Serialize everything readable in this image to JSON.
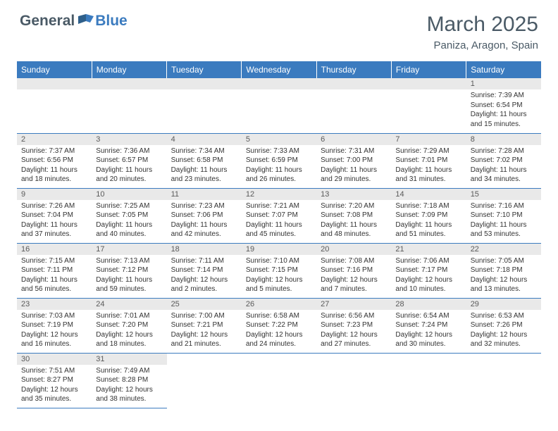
{
  "logo": {
    "text_dark": "General",
    "text_blue": "Blue"
  },
  "title": "March 2025",
  "location": "Paniza, Aragon, Spain",
  "colors": {
    "header_bg": "#3b7bbf",
    "header_text": "#ffffff",
    "daynum_bg": "#e9e9e9",
    "body_text": "#333333",
    "title_text": "#4a5a66"
  },
  "weekdays": [
    "Sunday",
    "Monday",
    "Tuesday",
    "Wednesday",
    "Thursday",
    "Friday",
    "Saturday"
  ],
  "weeks": [
    [
      null,
      null,
      null,
      null,
      null,
      null,
      {
        "n": "1",
        "sr": "7:39 AM",
        "ss": "6:54 PM",
        "dl": "11 hours and 15 minutes."
      }
    ],
    [
      {
        "n": "2",
        "sr": "7:37 AM",
        "ss": "6:56 PM",
        "dl": "11 hours and 18 minutes."
      },
      {
        "n": "3",
        "sr": "7:36 AM",
        "ss": "6:57 PM",
        "dl": "11 hours and 20 minutes."
      },
      {
        "n": "4",
        "sr": "7:34 AM",
        "ss": "6:58 PM",
        "dl": "11 hours and 23 minutes."
      },
      {
        "n": "5",
        "sr": "7:33 AM",
        "ss": "6:59 PM",
        "dl": "11 hours and 26 minutes."
      },
      {
        "n": "6",
        "sr": "7:31 AM",
        "ss": "7:00 PM",
        "dl": "11 hours and 29 minutes."
      },
      {
        "n": "7",
        "sr": "7:29 AM",
        "ss": "7:01 PM",
        "dl": "11 hours and 31 minutes."
      },
      {
        "n": "8",
        "sr": "7:28 AM",
        "ss": "7:02 PM",
        "dl": "11 hours and 34 minutes."
      }
    ],
    [
      {
        "n": "9",
        "sr": "7:26 AM",
        "ss": "7:04 PM",
        "dl": "11 hours and 37 minutes."
      },
      {
        "n": "10",
        "sr": "7:25 AM",
        "ss": "7:05 PM",
        "dl": "11 hours and 40 minutes."
      },
      {
        "n": "11",
        "sr": "7:23 AM",
        "ss": "7:06 PM",
        "dl": "11 hours and 42 minutes."
      },
      {
        "n": "12",
        "sr": "7:21 AM",
        "ss": "7:07 PM",
        "dl": "11 hours and 45 minutes."
      },
      {
        "n": "13",
        "sr": "7:20 AM",
        "ss": "7:08 PM",
        "dl": "11 hours and 48 minutes."
      },
      {
        "n": "14",
        "sr": "7:18 AM",
        "ss": "7:09 PM",
        "dl": "11 hours and 51 minutes."
      },
      {
        "n": "15",
        "sr": "7:16 AM",
        "ss": "7:10 PM",
        "dl": "11 hours and 53 minutes."
      }
    ],
    [
      {
        "n": "16",
        "sr": "7:15 AM",
        "ss": "7:11 PM",
        "dl": "11 hours and 56 minutes."
      },
      {
        "n": "17",
        "sr": "7:13 AM",
        "ss": "7:12 PM",
        "dl": "11 hours and 59 minutes."
      },
      {
        "n": "18",
        "sr": "7:11 AM",
        "ss": "7:14 PM",
        "dl": "12 hours and 2 minutes."
      },
      {
        "n": "19",
        "sr": "7:10 AM",
        "ss": "7:15 PM",
        "dl": "12 hours and 5 minutes."
      },
      {
        "n": "20",
        "sr": "7:08 AM",
        "ss": "7:16 PM",
        "dl": "12 hours and 7 minutes."
      },
      {
        "n": "21",
        "sr": "7:06 AM",
        "ss": "7:17 PM",
        "dl": "12 hours and 10 minutes."
      },
      {
        "n": "22",
        "sr": "7:05 AM",
        "ss": "7:18 PM",
        "dl": "12 hours and 13 minutes."
      }
    ],
    [
      {
        "n": "23",
        "sr": "7:03 AM",
        "ss": "7:19 PM",
        "dl": "12 hours and 16 minutes."
      },
      {
        "n": "24",
        "sr": "7:01 AM",
        "ss": "7:20 PM",
        "dl": "12 hours and 18 minutes."
      },
      {
        "n": "25",
        "sr": "7:00 AM",
        "ss": "7:21 PM",
        "dl": "12 hours and 21 minutes."
      },
      {
        "n": "26",
        "sr": "6:58 AM",
        "ss": "7:22 PM",
        "dl": "12 hours and 24 minutes."
      },
      {
        "n": "27",
        "sr": "6:56 AM",
        "ss": "7:23 PM",
        "dl": "12 hours and 27 minutes."
      },
      {
        "n": "28",
        "sr": "6:54 AM",
        "ss": "7:24 PM",
        "dl": "12 hours and 30 minutes."
      },
      {
        "n": "29",
        "sr": "6:53 AM",
        "ss": "7:26 PM",
        "dl": "12 hours and 32 minutes."
      }
    ],
    [
      {
        "n": "30",
        "sr": "7:51 AM",
        "ss": "8:27 PM",
        "dl": "12 hours and 35 minutes."
      },
      {
        "n": "31",
        "sr": "7:49 AM",
        "ss": "8:28 PM",
        "dl": "12 hours and 38 minutes."
      },
      null,
      null,
      null,
      null,
      null
    ]
  ],
  "labels": {
    "sunrise": "Sunrise: ",
    "sunset": "Sunset: ",
    "daylight": "Daylight: "
  }
}
